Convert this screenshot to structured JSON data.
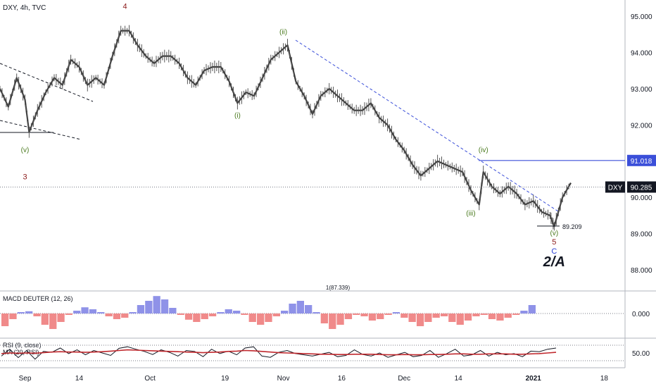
{
  "header": {
    "symbol_info": "DXY, 4h, TVC"
  },
  "chart_data": [
    {
      "type": "line",
      "pane": "price",
      "title": "",
      "ylim": [
        87.3,
        95.5
      ],
      "y_ticks": [
        {
          "label": "95.000",
          "value": 95
        },
        {
          "label": "94.000",
          "value": 94
        },
        {
          "label": "93.000",
          "value": 93
        },
        {
          "label": "92.000",
          "value": 92
        },
        {
          "label": "91.000",
          "value": 91
        },
        {
          "label": "90.000",
          "value": 90
        },
        {
          "label": "89.000",
          "value": 89
        },
        {
          "label": "88.000",
          "value": 88
        }
      ],
      "x_ticks": [
        {
          "label": "Sep",
          "date": "2020-09-01"
        },
        {
          "label": "14",
          "date": "2020-09-14"
        },
        {
          "label": "Oct",
          "date": "2020-10-01"
        },
        {
          "label": "19",
          "date": "2020-10-19"
        },
        {
          "label": "Nov",
          "date": "2020-11-02"
        },
        {
          "label": "16",
          "date": "2020-11-16"
        },
        {
          "label": "Dec",
          "date": "2020-12-01"
        },
        {
          "label": "14",
          "date": "2020-12-14"
        },
        {
          "label": "2021",
          "date": "2021-01-01"
        },
        {
          "label": "18",
          "date": "2021-01-18"
        }
      ],
      "xlim": [
        "2020-08-26",
        "2021-01-23"
      ],
      "grid": false,
      "series": [
        {
          "points": [
            [
              "2020-08-26",
              93.0
            ],
            [
              "2020-08-28",
              92.5
            ],
            [
              "2020-08-30",
              93.3
            ],
            [
              "2020-09-01",
              92.7
            ],
            [
              "2020-09-02",
              91.8
            ],
            [
              "2020-09-04",
              92.4
            ],
            [
              "2020-09-06",
              92.9
            ],
            [
              "2020-09-08",
              93.3
            ],
            [
              "2020-09-10",
              93.1
            ],
            [
              "2020-09-12",
              93.8
            ],
            [
              "2020-09-14",
              93.6
            ],
            [
              "2020-09-16",
              93.1
            ],
            [
              "2020-09-18",
              93.3
            ],
            [
              "2020-09-20",
              93.1
            ],
            [
              "2020-09-22",
              93.9
            ],
            [
              "2020-09-24",
              94.6
            ],
            [
              "2020-09-26",
              94.6
            ],
            [
              "2020-09-28",
              94.2
            ],
            [
              "2020-09-30",
              93.9
            ],
            [
              "2020-10-02",
              93.7
            ],
            [
              "2020-10-04",
              93.9
            ],
            [
              "2020-10-06",
              93.9
            ],
            [
              "2020-10-08",
              93.7
            ],
            [
              "2020-10-10",
              93.3
            ],
            [
              "2020-10-12",
              93.1
            ],
            [
              "2020-10-14",
              93.5
            ],
            [
              "2020-10-16",
              93.6
            ],
            [
              "2020-10-18",
              93.6
            ],
            [
              "2020-10-20",
              93.2
            ],
            [
              "2020-10-22",
              92.6
            ],
            [
              "2020-10-24",
              92.9
            ],
            [
              "2020-10-26",
              92.8
            ],
            [
              "2020-10-28",
              93.3
            ],
            [
              "2020-10-30",
              93.8
            ],
            [
              "2020-11-01",
              94.0
            ],
            [
              "2020-11-03",
              94.2
            ],
            [
              "2020-11-05",
              93.2
            ],
            [
              "2020-11-07",
              92.8
            ],
            [
              "2020-11-09",
              92.3
            ],
            [
              "2020-11-11",
              92.8
            ],
            [
              "2020-11-13",
              93.0
            ],
            [
              "2020-11-15",
              92.8
            ],
            [
              "2020-11-17",
              92.6
            ],
            [
              "2020-11-19",
              92.4
            ],
            [
              "2020-11-21",
              92.4
            ],
            [
              "2020-11-23",
              92.6
            ],
            [
              "2020-11-25",
              92.2
            ],
            [
              "2020-11-27",
              92.0
            ],
            [
              "2020-11-29",
              91.6
            ],
            [
              "2020-12-01",
              91.3
            ],
            [
              "2020-12-03",
              90.9
            ],
            [
              "2020-12-05",
              90.6
            ],
            [
              "2020-12-07",
              90.8
            ],
            [
              "2020-12-09",
              91.0
            ],
            [
              "2020-12-11",
              90.9
            ],
            [
              "2020-12-13",
              90.8
            ],
            [
              "2020-12-15",
              90.7
            ],
            [
              "2020-12-17",
              90.2
            ],
            [
              "2020-12-19",
              89.8
            ],
            [
              "2020-12-20",
              90.7
            ],
            [
              "2020-12-22",
              90.3
            ],
            [
              "2020-12-24",
              90.1
            ],
            [
              "2020-12-26",
              90.3
            ],
            [
              "2020-12-28",
              90.1
            ],
            [
              "2020-12-30",
              89.8
            ],
            [
              "2021-01-01",
              89.9
            ],
            [
              "2021-01-03",
              89.6
            ],
            [
              "2021-01-05",
              89.5
            ],
            [
              "2021-01-06",
              89.2
            ],
            [
              "2021-01-08",
              90.0
            ],
            [
              "2021-01-10",
              90.4
            ]
          ]
        }
      ],
      "last_price": {
        "label": "DXY",
        "value": "90.285",
        "level": 90.285
      },
      "resistance": {
        "value": "91.018",
        "level": 91.018
      },
      "low_marker": {
        "value": "89.209",
        "level": 89.209
      },
      "annotations": [
        {
          "text": "4",
          "date": "2020-09-25",
          "level": 95.2,
          "color": "red"
        },
        {
          "text": "3",
          "date": "2020-09-01",
          "level": 90.5,
          "color": "red"
        },
        {
          "text": "(v)",
          "date": "2020-09-01",
          "level": 91.25,
          "color": "green"
        },
        {
          "text": "(i)",
          "date": "2020-10-22",
          "level": 92.2,
          "color": "green"
        },
        {
          "text": "(ii)",
          "date": "2020-11-02",
          "level": 94.5,
          "color": "green"
        },
        {
          "text": "(iii)",
          "date": "2020-12-17",
          "level": 89.5,
          "color": "green"
        },
        {
          "text": "(iv)",
          "date": "2020-12-20",
          "level": 91.25,
          "color": "green"
        },
        {
          "text": "(v)",
          "date": "2021-01-06",
          "level": 88.95,
          "color": "green"
        },
        {
          "text": "5",
          "date": "2021-01-06",
          "level": 88.7,
          "color": "red"
        },
        {
          "text": "C",
          "date": "2021-01-06",
          "level": 88.45,
          "color": "blue"
        },
        {
          "text": "2/A",
          "date": "2021-01-06",
          "level": 88.1,
          "color": "black"
        }
      ],
      "footnote": "1(87.339)"
    },
    {
      "type": "bar",
      "pane": "macd",
      "legend": "MACD DEUTER (12, 26)",
      "y_ticks": [
        {
          "label": "0.000",
          "value": 0
        }
      ],
      "series": [
        {
          "values": [
            -0.45,
            -0.2,
            0.05,
            0.08,
            -0.1,
            -0.4,
            -0.55,
            -0.3,
            -0.05,
            0.1,
            0.22,
            0.15,
            0.05,
            -0.1,
            -0.2,
            -0.15,
            0.05,
            0.3,
            0.45,
            0.62,
            0.5,
            0.2,
            -0.05,
            -0.22,
            -0.3,
            -0.2,
            -0.1,
            0.05,
            0.15,
            0.1,
            -0.05,
            -0.3,
            -0.4,
            -0.3,
            -0.1,
            0.1,
            0.35,
            0.45,
            0.3,
            0.05,
            -0.35,
            -0.55,
            -0.4,
            -0.2,
            -0.05,
            -0.1,
            -0.25,
            -0.2,
            -0.05,
            0.05,
            -0.15,
            -0.3,
            -0.45,
            -0.3,
            -0.15,
            -0.1,
            -0.3,
            -0.4,
            -0.25,
            -0.1,
            -0.05,
            -0.2,
            -0.25,
            -0.15,
            -0.05,
            0.1,
            0.3
          ]
        }
      ]
    },
    {
      "type": "line",
      "pane": "rsi",
      "legend_1": "RSI (9, close)",
      "legend_2": "MA (20, RSI)",
      "y_ticks": [
        {
          "label": "50.00",
          "value": 50
        }
      ],
      "ylim": [
        25,
        75
      ],
      "series": [
        {
          "values": [
            40,
            62,
            35,
            58,
            30,
            55,
            52,
            66,
            48,
            60,
            44,
            58,
            50,
            42,
            65,
            70,
            62,
            55,
            45,
            60,
            52,
            40,
            58,
            55,
            38,
            62,
            48,
            56,
            44,
            66,
            70,
            40,
            36,
            52,
            58,
            48,
            44,
            40,
            46,
            52,
            38,
            42,
            60,
            45,
            40,
            50,
            36,
            44,
            52,
            38,
            42,
            58,
            36,
            48,
            62,
            40,
            44,
            58,
            40,
            52,
            44,
            48,
            38,
            56,
            54,
            62,
            66
          ]
        },
        {
          "values": [
            48,
            50,
            49,
            50,
            49,
            51,
            53,
            54,
            53,
            53,
            52,
            53,
            54,
            56,
            58,
            60,
            59,
            58,
            57,
            56,
            55,
            54,
            53,
            52,
            51,
            52,
            53,
            55,
            56,
            58,
            57,
            55,
            53,
            51,
            50,
            49,
            48,
            47,
            46,
            46,
            45,
            45,
            46,
            46,
            46,
            45,
            44,
            44,
            45,
            44,
            44,
            45,
            45,
            46,
            47,
            47,
            46,
            46,
            47,
            47,
            47,
            46,
            46,
            47,
            48,
            50,
            52
          ]
        }
      ]
    }
  ]
}
